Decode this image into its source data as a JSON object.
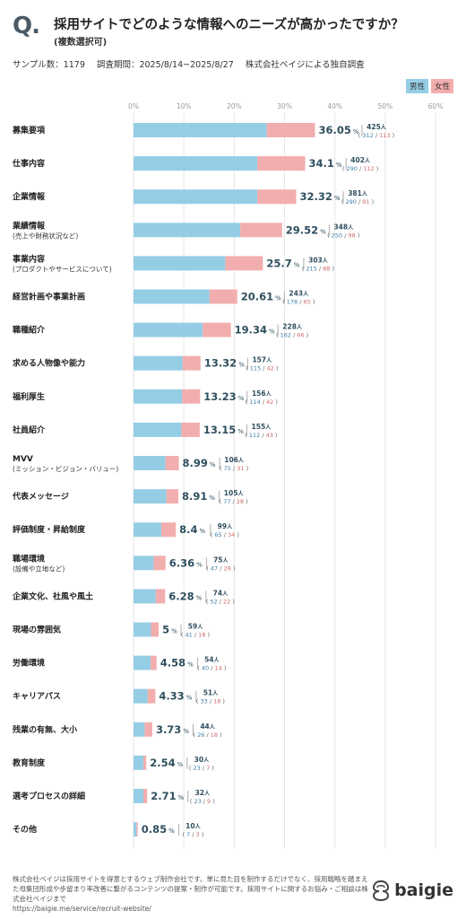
{
  "header": {
    "q_mark": "Q.",
    "title": "採用サイトでどのような情報へのニーズが高かったですか？",
    "subtitle": "(複数選択可)",
    "sample": "サンプル数：1179",
    "period": "調査期間：2025/8/14~2025/8/27",
    "source": "株式会社ベイジによる独自調査"
  },
  "legend": {
    "male": "男性",
    "female": "女性"
  },
  "colors": {
    "male": "#95cde5",
    "female": "#f2aeae",
    "value": "#2f4f5f",
    "male_text": "#3d7fa8",
    "female_text": "#d06a6a"
  },
  "chart_data": {
    "type": "bar",
    "orientation": "horizontal",
    "stacked": true,
    "xlim": [
      0,
      60
    ],
    "x_ticks": [
      "0%",
      "10%",
      "20%",
      "30%",
      "40%",
      "50%",
      "60%"
    ],
    "grid": true,
    "legend_position": "top-right",
    "value_unit": "%",
    "count_unit": "人",
    "series": [
      {
        "name": "男性"
      },
      {
        "name": "女性"
      }
    ],
    "items": [
      {
        "label": "募集要項",
        "sublabel": "",
        "percent": "36.05",
        "total": "425",
        "male": "312",
        "female": "113"
      },
      {
        "label": "仕事内容",
        "sublabel": "",
        "percent": "34.1",
        "total": "402",
        "male": "290",
        "female": "112"
      },
      {
        "label": "企業情報",
        "sublabel": "",
        "percent": "32.32",
        "total": "381",
        "male": "290",
        "female": "91"
      },
      {
        "label": "業績情報",
        "sublabel": "(売上や財務状況など)",
        "percent": "29.52",
        "total": "348",
        "male": "250",
        "female": "98"
      },
      {
        "label": "事業内容",
        "sublabel": "(プロダクトやサービスについて)",
        "percent": "25.7",
        "total": "303",
        "male": "215",
        "female": "88"
      },
      {
        "label": "経営計画や事業計画",
        "sublabel": "",
        "percent": "20.61",
        "total": "243",
        "male": "178",
        "female": "65"
      },
      {
        "label": "職種紹介",
        "sublabel": "",
        "percent": "19.34",
        "total": "228",
        "male": "162",
        "female": "66"
      },
      {
        "label": "求める人物像や能力",
        "sublabel": "",
        "percent": "13.32",
        "total": "157",
        "male": "115",
        "female": "42"
      },
      {
        "label": "福利厚生",
        "sublabel": "",
        "percent": "13.23",
        "total": "156",
        "male": "114",
        "female": "42"
      },
      {
        "label": "社員紹介",
        "sublabel": "",
        "percent": "13.15",
        "total": "155",
        "male": "112",
        "female": "43"
      },
      {
        "label": "MVV",
        "sublabel": "(ミッション・ビジョン・バリュー)",
        "percent": "8.99",
        "total": "106",
        "male": "75",
        "female": "31"
      },
      {
        "label": "代表メッセージ",
        "sublabel": "",
        "percent": "8.91",
        "total": "105",
        "male": "77",
        "female": "28"
      },
      {
        "label": "評価制度・昇給制度",
        "sublabel": "",
        "percent": "8.4",
        "total": "99",
        "male": "65",
        "female": "34"
      },
      {
        "label": "職場環境",
        "sublabel": "(設備や立地など)",
        "percent": "6.36",
        "total": "75",
        "male": "47",
        "female": "28"
      },
      {
        "label": "企業文化、社風や風土",
        "sublabel": "",
        "percent": "6.28",
        "total": "74",
        "male": "52",
        "female": "22"
      },
      {
        "label": "現場の雰囲気",
        "sublabel": "",
        "percent": "5",
        "total": "59",
        "male": "41",
        "female": "18"
      },
      {
        "label": "労働環境",
        "sublabel": "",
        "percent": "4.58",
        "total": "54",
        "male": "40",
        "female": "14"
      },
      {
        "label": "キャリアパス",
        "sublabel": "",
        "percent": "4.33",
        "total": "51",
        "male": "33",
        "female": "18"
      },
      {
        "label": "残業の有無、大小",
        "sublabel": "",
        "percent": "3.73",
        "total": "44",
        "male": "26",
        "female": "18"
      },
      {
        "label": "教育制度",
        "sublabel": "",
        "percent": "2.54",
        "total": "30",
        "male": "23",
        "female": "7"
      },
      {
        "label": "選考プロセスの詳細",
        "sublabel": "",
        "percent": "2.71",
        "total": "32",
        "male": "23",
        "female": "9"
      },
      {
        "label": "その他",
        "sublabel": "",
        "percent": "0.85",
        "total": "10",
        "male": "7",
        "female": "3"
      }
    ]
  },
  "footer": {
    "text": "株式会社ベイジは採用サイトを得意とするウェブ制作会社です。単に見た目を制作するだけでなく、採用戦略を踏まえた母集団形成や歩留まり率改善に繋がるコンテンツの提案・制作が可能です。採用サイトに関するお悩み・ご相談は株式会社ベイジまで",
    "url": "https://baigie.me/service/recruit-website/",
    "logo": "baigie"
  }
}
